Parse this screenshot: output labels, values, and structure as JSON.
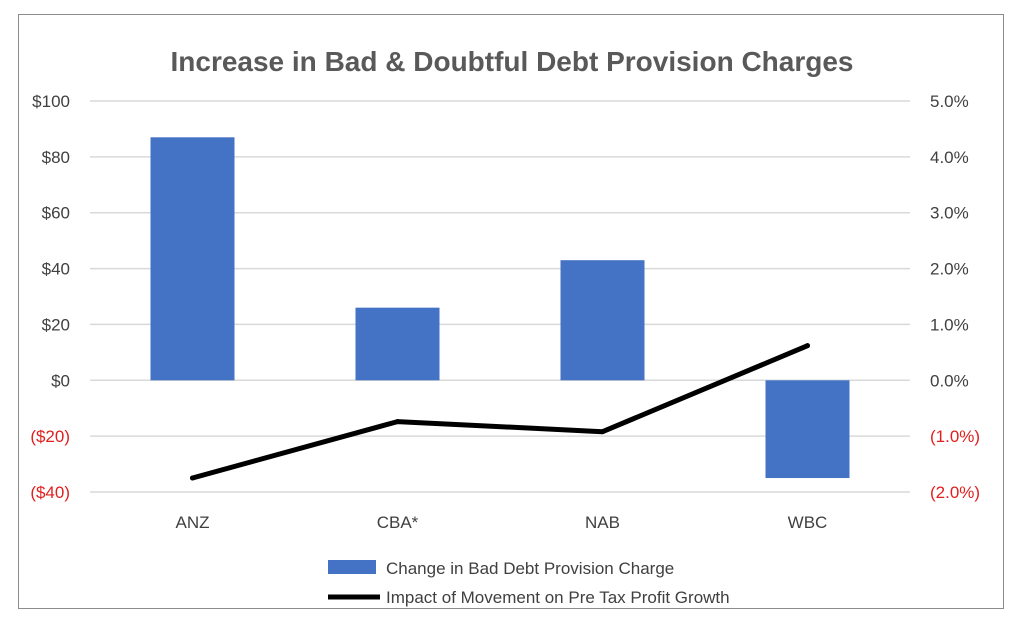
{
  "chart_data": {
    "type": "bar",
    "title": "Increase in Bad & Doubtful Debt Provision Charges",
    "categories": [
      "ANZ",
      "CBA*",
      "NAB",
      "WBC"
    ],
    "series": [
      {
        "name": "Change in Bad Debt Provision Charge",
        "type": "bar",
        "axis": "left",
        "values": [
          87,
          26,
          43,
          -35
        ],
        "color": "#4472c4"
      },
      {
        "name": "Impact of Movement on Pre Tax Profit Growth",
        "type": "line",
        "axis": "right",
        "values": [
          -1.75,
          -0.74,
          -0.92,
          0.62
        ],
        "color": "#000000"
      }
    ],
    "y_left": {
      "ylim": [
        -40,
        100
      ],
      "ticks": [
        100,
        80,
        60,
        40,
        20,
        0,
        -20,
        -40
      ],
      "tick_labels": [
        "$100",
        "$80",
        "$60",
        "$40",
        "$20",
        "$0",
        "($20)",
        "($40)"
      ]
    },
    "y_right": {
      "ylim": [
        -2.0,
        5.0
      ],
      "ticks": [
        5,
        4,
        3,
        2,
        1,
        0,
        -1,
        -2
      ],
      "tick_labels": [
        "5.0%",
        "4.0%",
        "3.0%",
        "2.0%",
        "1.0%",
        "0.0%",
        "(1.0%)",
        "(2.0%)"
      ]
    },
    "grid": true,
    "legend_position": "bottom",
    "colors": {
      "negative_tick": "#e02020",
      "tick": "#404040",
      "grid": "#d9d9d9"
    }
  }
}
